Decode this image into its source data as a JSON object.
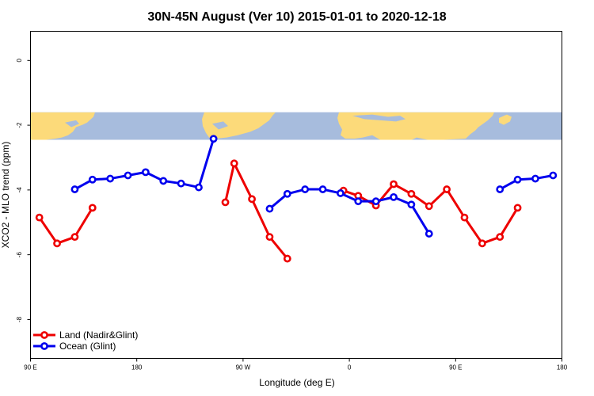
{
  "chart_data": {
    "type": "line",
    "title": "30N-45N August (Ver 10)   2015-01-01 to 2020-12-18",
    "xlabel": "Longitude (deg E)",
    "ylabel": "XCO2 - MLO trend (ppm)",
    "xlim": [
      90,
      540
    ],
    "ylim": [
      -9.2,
      0.9
    ],
    "x_ticks": [
      {
        "value": 90,
        "label": "90 E"
      },
      {
        "value": 180,
        "label": "180"
      },
      {
        "value": 270,
        "label": "90 W"
      },
      {
        "value": 360,
        "label": "0"
      },
      {
        "value": 450,
        "label": "90 E"
      },
      {
        "value": 540,
        "label": "180"
      }
    ],
    "y_ticks": [
      {
        "value": 0,
        "label": "0"
      },
      {
        "value": -2,
        "label": "-2"
      },
      {
        "value": -4,
        "label": "-4"
      },
      {
        "value": -6,
        "label": "-6"
      },
      {
        "value": -8,
        "label": "-8"
      }
    ],
    "legend": {
      "position": "bottom-left"
    },
    "map_strip": {
      "y_top": -1.6,
      "y_bottom": -2.45,
      "ocean_color": "#a7bcdd",
      "land_color": "#fcda7a"
    },
    "series": [
      {
        "name": "Land (Nadir&Glint)",
        "color": "#ee0000",
        "segments": [
          [
            [
              97.5,
              -4.85
            ],
            [
              112.5,
              -5.65
            ],
            [
              127.5,
              -5.45
            ],
            [
              142.5,
              -4.55
            ]
          ],
          [
            [
              255,
              -4.38
            ],
            [
              262.5,
              -3.18
            ],
            [
              277.5,
              -4.28
            ],
            [
              292.5,
              -5.45
            ],
            [
              307.5,
              -6.12
            ]
          ],
          [
            [
              355,
              -4.02
            ],
            [
              367.5,
              -4.18
            ],
            [
              382.5,
              -4.48
            ],
            [
              397.5,
              -3.82
            ],
            [
              412.5,
              -4.12
            ],
            [
              427.5,
              -4.5
            ],
            [
              442.5,
              -3.98
            ],
            [
              457.5,
              -4.85
            ],
            [
              472.5,
              -5.65
            ],
            [
              487.5,
              -5.45
            ],
            [
              502.5,
              -4.55
            ]
          ]
        ]
      },
      {
        "name": "Ocean (Glint)",
        "color": "#0000ee",
        "segments": [
          [
            [
              127.5,
              -3.98
            ],
            [
              142.5,
              -3.68
            ],
            [
              157.5,
              -3.65
            ],
            [
              172.5,
              -3.55
            ],
            [
              187.5,
              -3.45
            ],
            [
              202.5,
              -3.72
            ],
            [
              217.5,
              -3.8
            ],
            [
              232.5,
              -3.92
            ],
            [
              245,
              -2.42
            ]
          ],
          [
            [
              292.5,
              -4.58
            ],
            [
              307.5,
              -4.12
            ],
            [
              322.5,
              -3.98
            ],
            [
              337.5,
              -3.98
            ],
            [
              352.5,
              -4.1
            ],
            [
              367.5,
              -4.35
            ],
            [
              382.5,
              -4.35
            ],
            [
              397.5,
              -4.22
            ],
            [
              412.5,
              -4.45
            ],
            [
              427.5,
              -5.35
            ]
          ],
          [
            [
              487.5,
              -3.98
            ],
            [
              502.5,
              -3.68
            ],
            [
              517.5,
              -3.65
            ],
            [
              532.5,
              -3.55
            ]
          ]
        ]
      }
    ]
  }
}
